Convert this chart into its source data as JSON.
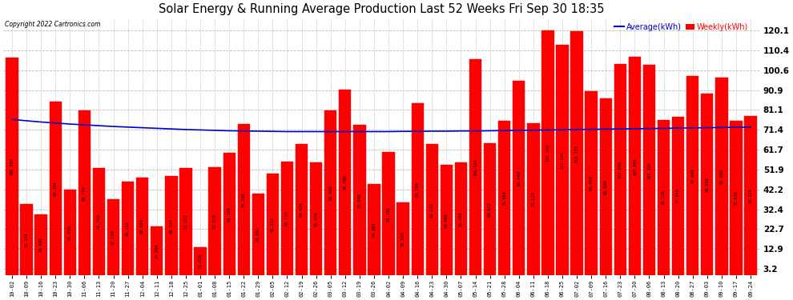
{
  "title": "Solar Energy & Running Average Production Last 52 Weeks Fri Sep 30 18:35",
  "copyright": "Copyright 2022 Cartronics.com",
  "bar_color": "#ff0000",
  "line_color": "#0000cc",
  "bg_color": "#ffffff",
  "grid_color": "#bbbbbb",
  "ylabel_right_ticks": [
    3.2,
    12.9,
    22.7,
    32.4,
    42.2,
    51.9,
    61.7,
    71.4,
    81.1,
    90.9,
    100.6,
    110.4,
    120.1
  ],
  "ylim": [
    0,
    126
  ],
  "categories": [
    "10-02",
    "10-09",
    "10-16",
    "10-23",
    "10-30",
    "11-06",
    "11-13",
    "11-20",
    "11-27",
    "12-04",
    "12-11",
    "12-18",
    "12-25",
    "01-01",
    "01-08",
    "01-15",
    "01-22",
    "01-29",
    "02-05",
    "02-12",
    "02-19",
    "02-26",
    "03-05",
    "03-12",
    "03-19",
    "03-26",
    "04-02",
    "04-09",
    "04-16",
    "04-23",
    "04-30",
    "05-07",
    "05-14",
    "05-21",
    "05-28",
    "06-04",
    "06-11",
    "06-18",
    "06-25",
    "07-02",
    "07-09",
    "07-16",
    "07-23",
    "07-30",
    "08-06",
    "08-13",
    "08-20",
    "08-27",
    "09-03",
    "09-10",
    "09-17",
    "09-24"
  ],
  "weekly_values": [
    106.836,
    35.124,
    29.892,
    85.204,
    42.016,
    80.776,
    52.76,
    37.12,
    46.132,
    48.024,
    24.084,
    48.524,
    52.552,
    13.828,
    52.928,
    60.184,
    74.188,
    39.992,
    49.912,
    55.72,
    64.424,
    55.476,
    80.9,
    91.096,
    73.696,
    44.864,
    60.288,
    35.92,
    84.296,
    64.272,
    54.08,
    55.464,
    106.024,
    64.672,
    75.904,
    95.448,
    74.62,
    120.1,
    113.224,
    119.72,
    90.464,
    86.68,
    103.656,
    107.024,
    103.224,
    76.128,
    77.84,
    97.648,
    89.02,
    96.908,
    75.616,
    78.224
  ],
  "average_values": [
    76.5,
    75.8,
    75.2,
    74.7,
    74.2,
    73.8,
    73.4,
    73.0,
    72.7,
    72.4,
    72.1,
    71.8,
    71.5,
    71.3,
    71.1,
    70.9,
    70.8,
    70.7,
    70.6,
    70.5,
    70.5,
    70.5,
    70.5,
    70.5,
    70.5,
    70.5,
    70.5,
    70.6,
    70.6,
    70.7,
    70.7,
    70.8,
    70.8,
    70.9,
    71.0,
    71.1,
    71.2,
    71.3,
    71.4,
    71.5,
    71.6,
    71.7,
    71.8,
    71.9,
    72.0,
    72.1,
    72.2,
    72.3,
    72.4,
    72.5,
    72.6,
    72.7
  ],
  "legend_avg_label": "Average(kWh)",
  "legend_weekly_label": "Weekly(kWh)",
  "legend_avg_color": "#0000cc",
  "legend_weekly_color": "#ff0000"
}
